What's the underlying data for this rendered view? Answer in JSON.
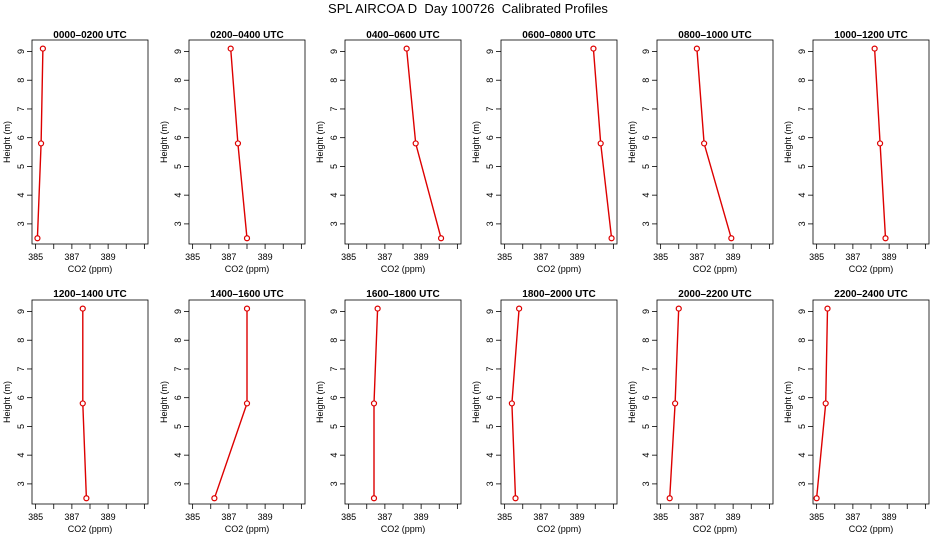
{
  "title": "SPL AIRCOA D  Day 100726  Calibrated Profiles",
  "colors": {
    "line": "#dd0000",
    "axis": "#000000",
    "text": "#000000"
  },
  "chart_data": [
    {
      "type": "line",
      "title": "0000–0200 UTC",
      "xlabel": "CO2 (ppm)",
      "ylabel": "Height (m)",
      "xlim": [
        384.8,
        391.2
      ],
      "ylim": [
        2.3,
        9.4
      ],
      "xticks": [
        385,
        387,
        389
      ],
      "xticks_minor": [
        386,
        388,
        390,
        391
      ],
      "yticks": [
        3,
        4,
        5,
        6,
        7,
        8,
        9
      ],
      "grid": false,
      "legend": "none",
      "series": [
        {
          "x": [
            385.1,
            385.3,
            385.4
          ],
          "y": [
            2.5,
            5.8,
            9.1
          ]
        }
      ]
    },
    {
      "type": "line",
      "title": "0200–0400 UTC",
      "xlabel": "CO2 (ppm)",
      "ylabel": "Height (m)",
      "xlim": [
        384.8,
        391.2
      ],
      "ylim": [
        2.3,
        9.4
      ],
      "xticks": [
        385,
        387,
        389
      ],
      "xticks_minor": [
        386,
        388,
        390,
        391
      ],
      "yticks": [
        3,
        4,
        5,
        6,
        7,
        8,
        9
      ],
      "grid": false,
      "legend": "none",
      "series": [
        {
          "x": [
            388.0,
            387.5,
            387.1
          ],
          "y": [
            2.5,
            5.8,
            9.1
          ]
        }
      ]
    },
    {
      "type": "line",
      "title": "0400–0600 UTC",
      "xlabel": "CO2 (ppm)",
      "ylabel": "Height (m)",
      "xlim": [
        384.8,
        391.2
      ],
      "ylim": [
        2.3,
        9.4
      ],
      "xticks": [
        385,
        387,
        389
      ],
      "xticks_minor": [
        386,
        388,
        390,
        391
      ],
      "yticks": [
        3,
        4,
        5,
        6,
        7,
        8,
        9
      ],
      "grid": false,
      "legend": "none",
      "series": [
        {
          "x": [
            390.1,
            388.7,
            388.2
          ],
          "y": [
            2.5,
            5.8,
            9.1
          ]
        }
      ]
    },
    {
      "type": "line",
      "title": "0600–0800 UTC",
      "xlabel": "CO2 (ppm)",
      "ylabel": "Height (m)",
      "xlim": [
        384.8,
        391.2
      ],
      "ylim": [
        2.3,
        9.4
      ],
      "xticks": [
        385,
        387,
        389
      ],
      "xticks_minor": [
        386,
        388,
        390,
        391
      ],
      "yticks": [
        3,
        4,
        5,
        6,
        7,
        8,
        9
      ],
      "grid": false,
      "legend": "none",
      "series": [
        {
          "x": [
            390.9,
            390.3,
            389.9
          ],
          "y": [
            2.5,
            5.8,
            9.1
          ]
        }
      ]
    },
    {
      "type": "line",
      "title": "0800–1000 UTC",
      "xlabel": "CO2 (ppm)",
      "ylabel": "Height (m)",
      "xlim": [
        384.8,
        391.2
      ],
      "ylim": [
        2.3,
        9.4
      ],
      "xticks": [
        385,
        387,
        389
      ],
      "xticks_minor": [
        386,
        388,
        390,
        391
      ],
      "yticks": [
        3,
        4,
        5,
        6,
        7,
        8,
        9
      ],
      "grid": false,
      "legend": "none",
      "series": [
        {
          "x": [
            388.9,
            387.4,
            387.0
          ],
          "y": [
            2.5,
            5.8,
            9.1
          ]
        }
      ]
    },
    {
      "type": "line",
      "title": "1000–1200 UTC",
      "xlabel": "CO2 (ppm)",
      "ylabel": "Height (m)",
      "xlim": [
        384.8,
        391.2
      ],
      "ylim": [
        2.3,
        9.4
      ],
      "xticks": [
        385,
        387,
        389
      ],
      "xticks_minor": [
        386,
        388,
        390,
        391
      ],
      "yticks": [
        3,
        4,
        5,
        6,
        7,
        8,
        9
      ],
      "grid": false,
      "legend": "none",
      "series": [
        {
          "x": [
            388.8,
            388.5,
            388.2
          ],
          "y": [
            2.5,
            5.8,
            9.1
          ]
        }
      ]
    },
    {
      "type": "line",
      "title": "1200–1400 UTC",
      "xlabel": "CO2 (ppm)",
      "ylabel": "Height (m)",
      "xlim": [
        384.8,
        391.2
      ],
      "ylim": [
        2.3,
        9.4
      ],
      "xticks": [
        385,
        387,
        389
      ],
      "xticks_minor": [
        386,
        388,
        390,
        391
      ],
      "yticks": [
        3,
        4,
        5,
        6,
        7,
        8,
        9
      ],
      "grid": false,
      "legend": "none",
      "series": [
        {
          "x": [
            387.8,
            387.6,
            387.6
          ],
          "y": [
            2.5,
            5.8,
            9.1
          ]
        }
      ]
    },
    {
      "type": "line",
      "title": "1400–1600 UTC",
      "xlabel": "CO2 (ppm)",
      "ylabel": "Height (m)",
      "xlim": [
        384.8,
        391.2
      ],
      "ylim": [
        2.3,
        9.4
      ],
      "xticks": [
        385,
        387,
        389
      ],
      "xticks_minor": [
        386,
        388,
        390,
        391
      ],
      "yticks": [
        3,
        4,
        5,
        6,
        7,
        8,
        9
      ],
      "grid": false,
      "legend": "none",
      "series": [
        {
          "x": [
            386.2,
            388.0,
            388.0
          ],
          "y": [
            2.5,
            5.8,
            9.1
          ]
        }
      ]
    },
    {
      "type": "line",
      "title": "1600–1800 UTC",
      "xlabel": "CO2 (ppm)",
      "ylabel": "Height (m)",
      "xlim": [
        384.8,
        391.2
      ],
      "ylim": [
        2.3,
        9.4
      ],
      "xticks": [
        385,
        387,
        389
      ],
      "xticks_minor": [
        386,
        388,
        390,
        391
      ],
      "yticks": [
        3,
        4,
        5,
        6,
        7,
        8,
        9
      ],
      "grid": false,
      "legend": "none",
      "series": [
        {
          "x": [
            386.4,
            386.4,
            386.6
          ],
          "y": [
            2.5,
            5.8,
            9.1
          ]
        }
      ]
    },
    {
      "type": "line",
      "title": "1800–2000 UTC",
      "xlabel": "CO2 (ppm)",
      "ylabel": "Height (m)",
      "xlim": [
        384.8,
        391.2
      ],
      "ylim": [
        2.3,
        9.4
      ],
      "xticks": [
        385,
        387,
        389
      ],
      "xticks_minor": [
        386,
        388,
        390,
        391
      ],
      "yticks": [
        3,
        4,
        5,
        6,
        7,
        8,
        9
      ],
      "grid": false,
      "legend": "none",
      "series": [
        {
          "x": [
            385.6,
            385.4,
            385.8
          ],
          "y": [
            2.5,
            5.8,
            9.1
          ]
        }
      ]
    },
    {
      "type": "line",
      "title": "2000–2200 UTC",
      "xlabel": "CO2 (ppm)",
      "ylabel": "Height (m)",
      "xlim": [
        384.8,
        391.2
      ],
      "ylim": [
        2.3,
        9.4
      ],
      "xticks": [
        385,
        387,
        389
      ],
      "xticks_minor": [
        386,
        388,
        390,
        391
      ],
      "yticks": [
        3,
        4,
        5,
        6,
        7,
        8,
        9
      ],
      "grid": false,
      "legend": "none",
      "series": [
        {
          "x": [
            385.5,
            385.8,
            386.0
          ],
          "y": [
            2.5,
            5.8,
            9.1
          ]
        }
      ]
    },
    {
      "type": "line",
      "title": "2200–2400 UTC",
      "xlabel": "CO2 (ppm)",
      "ylabel": "Height (m)",
      "xlim": [
        384.8,
        391.2
      ],
      "ylim": [
        2.3,
        9.4
      ],
      "xticks": [
        385,
        387,
        389
      ],
      "xticks_minor": [
        386,
        388,
        390,
        391
      ],
      "yticks": [
        3,
        4,
        5,
        6,
        7,
        8,
        9
      ],
      "grid": false,
      "legend": "none",
      "series": [
        {
          "x": [
            385.0,
            385.5,
            385.6
          ],
          "y": [
            2.5,
            5.8,
            9.1
          ]
        }
      ]
    }
  ]
}
